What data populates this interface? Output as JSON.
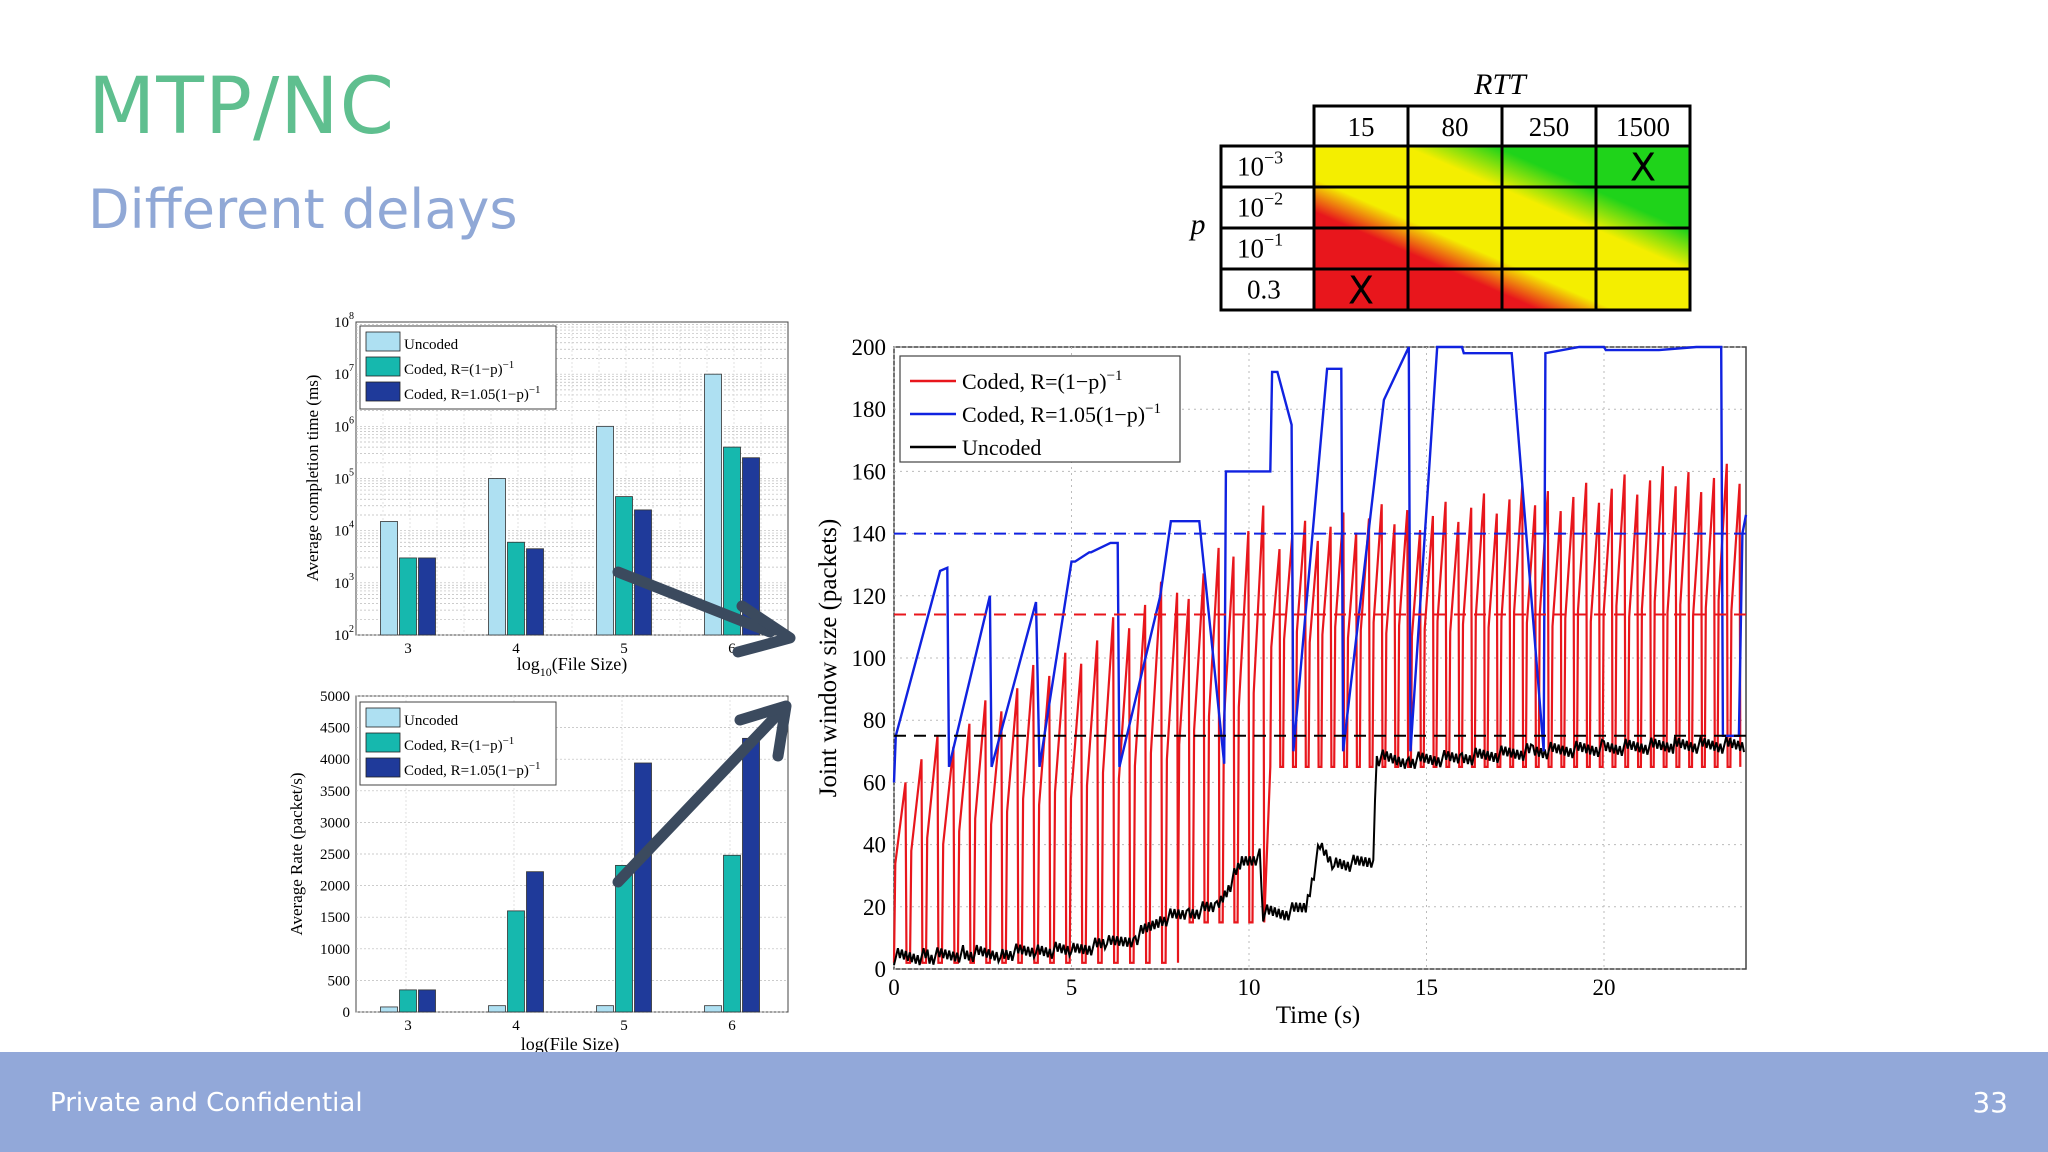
{
  "slide": {
    "title": "MTP/NC",
    "subtitle": "Different delays",
    "footer": "Private and Confidential",
    "page_number": "33"
  },
  "colors": {
    "title": "#5fbf8f",
    "subtitle": "#90a8d6",
    "footer_bg": "#92a8d9",
    "uncoded_bar": "#aee0f2",
    "coded_bar": "#16b8ae",
    "coded105_bar": "#1f3a9a",
    "arrow": "#3b4a5e",
    "red": "#e8161c",
    "blue": "#1022e0",
    "black": "#000000"
  },
  "chart_data": [
    {
      "id": "completion-time",
      "type": "bar",
      "scale": "log",
      "categories": [
        "3",
        "4",
        "5",
        "6"
      ],
      "xlabel_main": "log",
      "xlabel_sub": "10",
      "xlabel_rest": "(File Size)",
      "ylabel": "Average completion time (ms)",
      "ylim_exp": [
        2,
        8
      ],
      "yticks": [
        {
          "base": "10",
          "exp": "2"
        },
        {
          "base": "10",
          "exp": "3"
        },
        {
          "base": "10",
          "exp": "4"
        },
        {
          "base": "10",
          "exp": "5"
        },
        {
          "base": "10",
          "exp": "6"
        },
        {
          "base": "10",
          "exp": "7"
        },
        {
          "base": "10",
          "exp": "8"
        }
      ],
      "legend": [
        "Uncoded",
        "Coded, R=(1−p)",
        "Coded, R=1.05(1−p)"
      ],
      "legend_sup": "−1",
      "series": [
        {
          "name": "Uncoded",
          "values": [
            15000,
            100000,
            1000000,
            10000000
          ]
        },
        {
          "name": "Coded, R=(1−p)^−1",
          "values": [
            3000,
            6000,
            45000,
            400000
          ]
        },
        {
          "name": "Coded, R=1.05(1−p)^−1",
          "values": [
            3000,
            4500,
            25000,
            250000
          ]
        }
      ]
    },
    {
      "id": "average-rate",
      "type": "bar",
      "categories": [
        "3",
        "4",
        "5",
        "6"
      ],
      "xlabel": "log(File Size)",
      "ylabel": "Average Rate (packet/s)",
      "ylim": [
        0,
        5000
      ],
      "yticks": [
        "0",
        "500",
        "1000",
        "1500",
        "2000",
        "2500",
        "3000",
        "3500",
        "4000",
        "4500",
        "5000"
      ],
      "legend": [
        "Uncoded",
        "Coded, R=(1−p)",
        "Coded, R=1.05(1−p)"
      ],
      "legend_sup": "−1",
      "series": [
        {
          "name": "Uncoded",
          "values": [
            80,
            100,
            100,
            100
          ]
        },
        {
          "name": "Coded, R=(1−p)^−1",
          "values": [
            350,
            1600,
            2320,
            2480
          ]
        },
        {
          "name": "Coded, R=1.05(1−p)^−1",
          "values": [
            350,
            2220,
            3940,
            4330
          ]
        }
      ]
    },
    {
      "id": "window-size",
      "type": "line",
      "xlabel": "Time (s)",
      "ylabel": "Joint window size (packets)",
      "xlim": [
        0,
        24
      ],
      "ylim": [
        0,
        200
      ],
      "xticks": [
        "0",
        "5",
        "10",
        "15",
        "20"
      ],
      "yticks": [
        "0",
        "20",
        "40",
        "60",
        "80",
        "100",
        "120",
        "140",
        "160",
        "180",
        "200"
      ],
      "legend": [
        "Coded, R=(1−p)",
        "Coded, R=1.05(1−p)",
        "Uncoded"
      ],
      "legend_sup": "−1",
      "reference_lines": [
        {
          "name": "Coded, R=1.05(1−p)^−1 mean",
          "y": 140,
          "color": "blue"
        },
        {
          "name": "Coded, R=(1−p)^−1 mean",
          "y": 114,
          "color": "red"
        },
        {
          "name": "Uncoded mean",
          "y": 75,
          "color": "black"
        }
      ],
      "series": [
        {
          "name": "Coded, R=1.05(1−p)^−1",
          "color": "blue",
          "x": [
            0,
            0.05,
            1.3,
            1.5,
            1.55,
            2.7,
            2.75,
            4.0,
            4.1,
            5.0,
            5.1,
            5.5,
            5.55,
            6.1,
            6.2,
            6.3,
            6.35,
            7.5,
            7.8,
            7.85,
            8.6,
            9.3,
            9.35,
            10.1,
            10.6,
            10.65,
            10.8,
            11.2,
            11.25,
            12.2,
            12.6,
            12.65,
            13.8,
            14.5,
            14.55,
            15.3,
            16.0,
            16.05,
            17.4,
            18.3,
            18.35,
            19.3,
            19.9,
            20.0,
            20.05,
            21.1,
            21.5,
            21.55,
            22.6,
            23.3,
            23.35,
            23.8,
            23.9,
            24.0
          ],
          "y": [
            60,
            75,
            128,
            129,
            65,
            120,
            65,
            118,
            65,
            131,
            131,
            134,
            134,
            137,
            137,
            137,
            65,
            120,
            144,
            144,
            144,
            66,
            160,
            160,
            160,
            192,
            192,
            175,
            70,
            193,
            193,
            70,
            183,
            200,
            70,
            200,
            200,
            198,
            198,
            70,
            198,
            200,
            200,
            200,
            199,
            199,
            199,
            199,
            200,
            200,
            75,
            75,
            140,
            146
          ]
        },
        {
          "name": "Coded, R=(1−p)^−1",
          "color": "red",
          "sawtooth": [
            {
              "t0": 0.0,
              "t1": 8.0,
              "period": 0.45,
              "low": 2,
              "high_start": 65,
              "high_end": 124
            },
            {
              "t0": 8.0,
              "t1": 10.6,
              "period": 0.42,
              "low": 15,
              "high_start": 124,
              "high_end": 145
            },
            {
              "t0": 10.6,
              "t1": 24.0,
              "period": 0.36,
              "low": 65,
              "high_start": 140,
              "high_end": 160
            }
          ]
        },
        {
          "name": "Uncoded",
          "color": "black",
          "x": [
            0,
            1,
            2,
            3,
            4,
            5,
            6,
            6.8,
            7.5,
            8.3,
            9.1,
            9.8,
            10.3,
            10.4,
            11.0,
            11.6,
            12.0,
            12.4,
            13.0,
            13.5,
            13.6,
            14.5,
            16,
            18,
            20,
            22,
            24
          ],
          "y": [
            4,
            4,
            5,
            5,
            6,
            6,
            8,
            10,
            16,
            18,
            20,
            34,
            36,
            18,
            18,
            20,
            40,
            34,
            34,
            35,
            68,
            67,
            68,
            70,
            71,
            72,
            72
          ]
        }
      ]
    },
    {
      "id": "rtt-grid",
      "type": "heatmap",
      "title": "RTT",
      "row_label": "p",
      "columns": [
        "15",
        "80",
        "250",
        "1500"
      ],
      "rows": [
        {
          "base": "10",
          "exp": "−3"
        },
        {
          "base": "10",
          "exp": "−2"
        },
        {
          "base": "10",
          "exp": "−1"
        },
        {
          "base": "0.3",
          "exp": ""
        }
      ],
      "zones": [
        "green",
        "yellow",
        "red"
      ],
      "marks": [
        {
          "row": 0,
          "col": 3,
          "text": "X"
        },
        {
          "row": 3,
          "col": 0,
          "text": "X"
        }
      ]
    }
  ]
}
